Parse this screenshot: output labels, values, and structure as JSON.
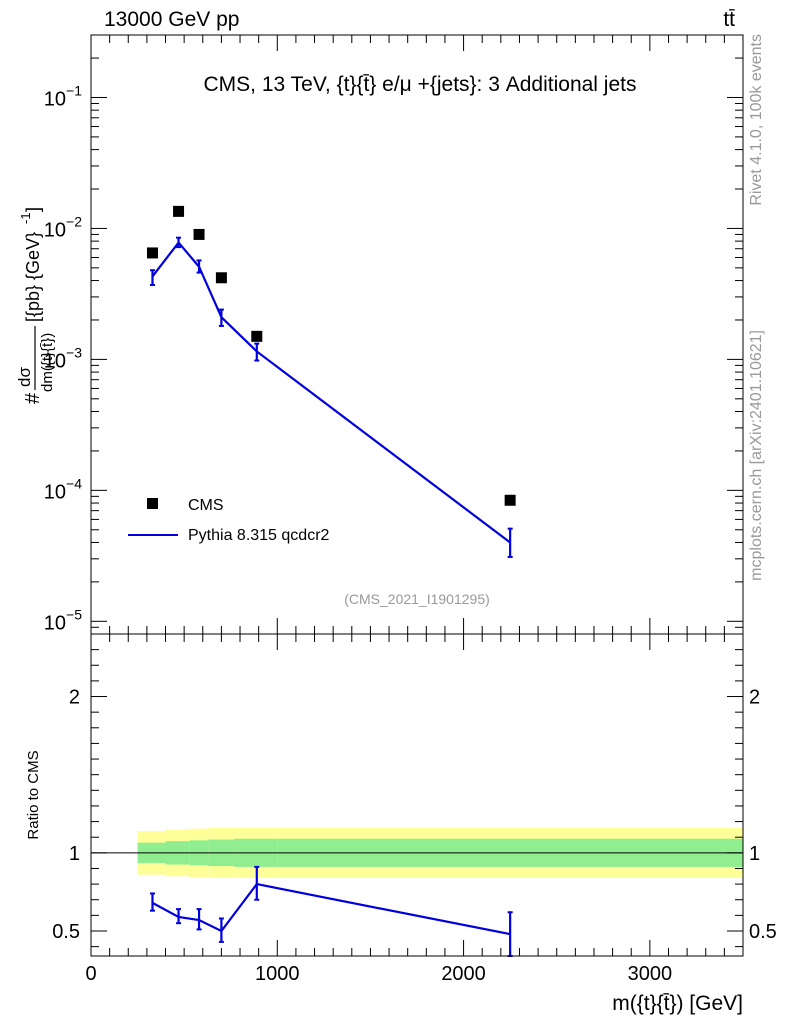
{
  "header": {
    "left": "13000 GeV pp",
    "right": "tt̄"
  },
  "side_labels": {
    "rivet": "Rivet 4.1.0,  100k events",
    "mcplots": "mcplots.cern.ch [arXiv:2401.10621]"
  },
  "colors": {
    "mc": "#0000dd",
    "band_inner": "#90ee90",
    "band_outer": "#ffff99",
    "data": "#000000",
    "watermark": "#999999"
  },
  "chart_data": [
    {
      "type": "line",
      "title": "CMS, 13 TeV, {t}{t̄} e/μ +{jets}: 3 Additional jets",
      "ylabel": "# dσ / dm({t}{t̄}) [{pb} {GeV}^-1]",
      "xlabel": "",
      "yscale": "log",
      "xlim": [
        0,
        3500
      ],
      "ylim": [
        8e-06,
        0.3
      ],
      "yticks": [
        {
          "value": 0.1,
          "label": "10^-1",
          "base": "10",
          "exp": "−1"
        },
        {
          "value": 0.01,
          "label": "10^-2",
          "base": "10",
          "exp": "−2"
        },
        {
          "value": 0.001,
          "label": "10^-3",
          "base": "10",
          "exp": "−3"
        },
        {
          "value": 0.0001,
          "label": "10^-4",
          "base": "10",
          "exp": "−4"
        },
        {
          "value": 1e-05,
          "label": "10^-5",
          "base": "10",
          "exp": "−5"
        }
      ],
      "series": [
        {
          "name": "CMS",
          "kind": "points",
          "x": [
            330,
            470,
            580,
            700,
            890,
            2250
          ],
          "y": [
            0.0065,
            0.0135,
            0.009,
            0.0042,
            0.0015,
            8.4e-05
          ]
        },
        {
          "name": "Pythia 8.315 qcdcr2",
          "kind": "line",
          "x": [
            330,
            470,
            580,
            700,
            890,
            2250
          ],
          "y": [
            0.0043,
            0.0078,
            0.0051,
            0.0021,
            0.00115,
            4e-05
          ],
          "err_low": [
            0.0037,
            0.0072,
            0.0046,
            0.0018,
            0.00098,
            3.1e-05
          ],
          "err_high": [
            0.0048,
            0.0085,
            0.0057,
            0.0024,
            0.00132,
            5.1e-05
          ]
        }
      ],
      "legend": {
        "position": "bottom-left",
        "entries": [
          "CMS",
          "Pythia 8.315 qcdcr2"
        ]
      },
      "watermark": "(CMS_2021_I1901295)"
    },
    {
      "type": "line",
      "ylabel": "Ratio to CMS",
      "xlabel": "m({t}{t̄}) [GeV]",
      "xlim": [
        0,
        3500
      ],
      "ylim": [
        0.34,
        2.4
      ],
      "yticks": [
        0.5,
        1,
        2
      ],
      "xticks": [
        0,
        1000,
        2000,
        3000
      ],
      "bins": [
        {
          "lo": 250,
          "hi": 400,
          "band_inner": 0.065,
          "band_outer": 0.14
        },
        {
          "lo": 400,
          "hi": 530,
          "band_inner": 0.075,
          "band_outer": 0.15
        },
        {
          "lo": 530,
          "hi": 630,
          "band_inner": 0.08,
          "band_outer": 0.155
        },
        {
          "lo": 630,
          "hi": 770,
          "band_inner": 0.085,
          "band_outer": 0.16
        },
        {
          "lo": 770,
          "hi": 1000,
          "band_inner": 0.09,
          "band_outer": 0.16
        },
        {
          "lo": 1000,
          "hi": 3500,
          "band_inner": 0.09,
          "band_outer": 0.16
        }
      ],
      "series": [
        {
          "name": "Pythia 8.315 qcdcr2",
          "kind": "line",
          "x": [
            330,
            470,
            580,
            700,
            890,
            2250
          ],
          "y": [
            0.68,
            0.59,
            0.57,
            0.5,
            0.8,
            0.48
          ],
          "err_low": [
            0.63,
            0.55,
            0.51,
            0.43,
            0.7,
            0.34
          ],
          "err_high": [
            0.74,
            0.64,
            0.64,
            0.58,
            0.91,
            0.62
          ]
        }
      ]
    }
  ]
}
